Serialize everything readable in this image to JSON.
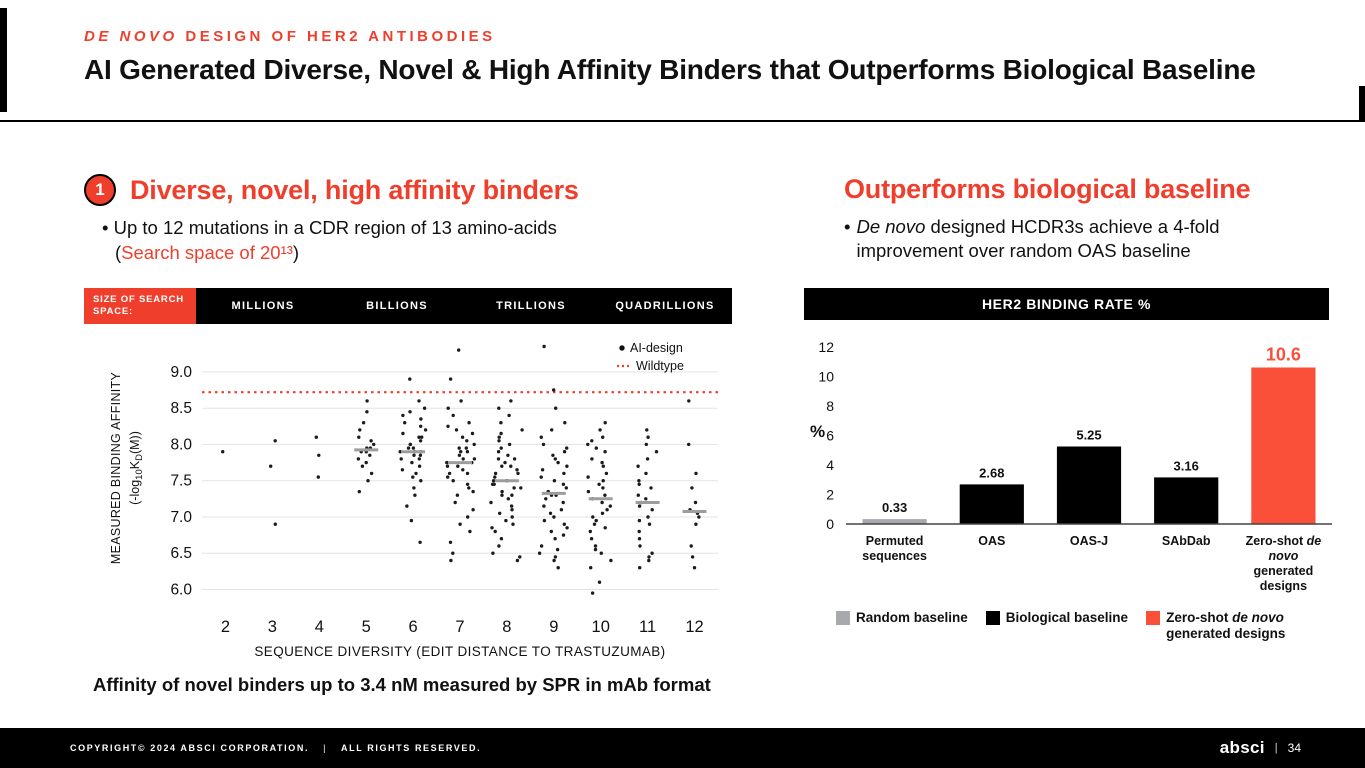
{
  "colors": {
    "accent": "#EF3F2C",
    "bar_red": "#FA4F38",
    "gray_bar": "#A7A9AC",
    "median_gray": "#9D9D9D",
    "black": "#000000"
  },
  "italic_phrases": [
    "DE NOVO",
    "De novo",
    "de novo"
  ],
  "header": {
    "kicker": "DE NOVO DESIGN OF HER2 ANTIBODIES",
    "title": "AI Generated Diverse, Novel & High Affinity Binders that Outperforms Biological Baseline"
  },
  "left_panel": {
    "badge": "1",
    "heading": "Diverse, novel, high affinity binders",
    "bullet_char": "•",
    "bullet_line1": "Up to 12 mutations in a CDR region of 13 amino-acids",
    "bullet_line2_prefix": "(",
    "bullet_line2_red": "Search space of 20¹³",
    "bullet_line2_suffix": ")",
    "banner": {
      "label": "SIZE OF SEARCH SPACE:",
      "segments": [
        "MILLIONS",
        "BILLIONS",
        "TRILLIONS",
        "QUADRILLIONS"
      ]
    },
    "caption": "Affinity of novel binders up to 3.4 nM measured by SPR in mAb format"
  },
  "right_panel": {
    "heading": "Outperforms biological baseline",
    "bullet_char": "•",
    "bullet": "De novo designed HCDR3s achieve a 4-fold improvement over random OAS baseline",
    "chart_title": "HER2 BINDING RATE %",
    "legend": [
      {
        "label": "Random baseline",
        "color": "#A7A9AC"
      },
      {
        "label": "Biological baseline",
        "color": "#000000"
      },
      {
        "label": "Zero-shot de novo generated designs",
        "color": "#FA4F38"
      }
    ]
  },
  "footer": {
    "copyright": "COPYRIGHT© 2024 ABSCI CORPORATION.",
    "divider": "|",
    "rights": "ALL RIGHTS RESERVED.",
    "logo": "absci",
    "page_sep": "|",
    "page": "34"
  },
  "chart_data": [
    {
      "type": "scatter",
      "title": "",
      "xlabel": "SEQUENCE DIVERSITY (EDIT DISTANCE TO TRASTUZUMAB)",
      "ylabel_line1": "MEASURED BINDING AFFINITY",
      "ylabel_line2_parts": [
        {
          "t": "(-log"
        },
        {
          "t": "10",
          "sub": true
        },
        {
          "t": "K"
        },
        {
          "t": "D",
          "sub": true
        },
        {
          "t": "(M))"
        }
      ],
      "x_ticks": [
        2,
        3,
        4,
        5,
        6,
        7,
        8,
        9,
        10,
        11,
        12
      ],
      "y_ticks": [
        6.0,
        6.5,
        7.0,
        7.5,
        8.0,
        8.5,
        9.0
      ],
      "ylim": [
        5.8,
        9.55
      ],
      "grid": true,
      "wildtype_affinity": 8.72,
      "legend": [
        {
          "label": "AI-design",
          "marker": "black-dot"
        },
        {
          "label": "Wildtype",
          "marker": "red-dashed-line"
        }
      ],
      "groups": [
        {
          "edit_distance": 2,
          "values": [
            7.9
          ]
        },
        {
          "edit_distance": 3,
          "values": [
            8.05,
            7.7,
            6.9
          ]
        },
        {
          "edit_distance": 4,
          "values": [
            8.1,
            7.85,
            7.55
          ]
        },
        {
          "edit_distance": 5,
          "values": [
            8.6,
            8.45,
            8.3,
            8.2,
            8.1,
            8.05,
            8.0,
            7.95,
            7.95,
            7.9,
            7.9,
            7.85,
            7.8,
            7.75,
            7.7,
            7.6,
            7.5,
            7.35
          ]
        },
        {
          "edit_distance": 6,
          "values": [
            8.9,
            8.6,
            8.5,
            8.45,
            8.4,
            8.35,
            8.3,
            8.25,
            8.2,
            8.15,
            8.1,
            8.1,
            8.05,
            8.0,
            8.0,
            7.95,
            7.95,
            7.9,
            7.9,
            7.9,
            7.85,
            7.85,
            7.8,
            7.8,
            7.75,
            7.7,
            7.65,
            7.6,
            7.55,
            7.5,
            7.4,
            7.3,
            7.15,
            6.95,
            6.65
          ]
        },
        {
          "edit_distance": 7,
          "values": [
            9.3,
            8.9,
            8.6,
            8.5,
            8.4,
            8.3,
            8.25,
            8.2,
            8.15,
            8.1,
            8.05,
            8.0,
            7.95,
            7.95,
            7.9,
            7.9,
            7.85,
            7.8,
            7.8,
            7.75,
            7.75,
            7.7,
            7.7,
            7.65,
            7.6,
            7.6,
            7.55,
            7.5,
            7.45,
            7.4,
            7.35,
            7.3,
            7.2,
            7.1,
            7.0,
            6.9,
            6.8,
            6.65,
            6.5,
            6.4
          ]
        },
        {
          "edit_distance": 8,
          "values": [
            8.6,
            8.5,
            8.4,
            8.3,
            8.2,
            8.15,
            8.1,
            8.05,
            8.0,
            7.95,
            7.9,
            7.85,
            7.8,
            7.8,
            7.75,
            7.7,
            7.7,
            7.65,
            7.6,
            7.6,
            7.55,
            7.5,
            7.5,
            7.45,
            7.45,
            7.4,
            7.4,
            7.35,
            7.3,
            7.3,
            7.25,
            7.2,
            7.15,
            7.1,
            7.05,
            7.0,
            6.95,
            6.9,
            6.85,
            6.8,
            6.7,
            6.6,
            6.5,
            6.45,
            6.4
          ]
        },
        {
          "edit_distance": 9,
          "values": [
            9.35,
            8.75,
            8.5,
            8.3,
            8.2,
            8.1,
            8.0,
            7.95,
            7.9,
            7.85,
            7.8,
            7.75,
            7.7,
            7.65,
            7.6,
            7.55,
            7.5,
            7.45,
            7.4,
            7.35,
            7.3,
            7.3,
            7.25,
            7.2,
            7.15,
            7.1,
            7.05,
            7.0,
            6.95,
            6.9,
            6.85,
            6.8,
            6.75,
            6.7,
            6.6,
            6.55,
            6.5,
            6.45,
            6.4,
            6.3
          ]
        },
        {
          "edit_distance": 10,
          "values": [
            8.3,
            8.2,
            8.1,
            8.05,
            8.0,
            7.95,
            7.9,
            7.8,
            7.75,
            7.7,
            7.6,
            7.55,
            7.5,
            7.45,
            7.4,
            7.35,
            7.3,
            7.25,
            7.2,
            7.15,
            7.1,
            7.05,
            7.0,
            6.95,
            6.9,
            6.85,
            6.8,
            6.7,
            6.6,
            6.55,
            6.5,
            6.4,
            6.3,
            6.1,
            5.95
          ]
        },
        {
          "edit_distance": 11,
          "values": [
            8.2,
            8.1,
            8.0,
            7.9,
            7.8,
            7.7,
            7.6,
            7.5,
            7.45,
            7.4,
            7.3,
            7.25,
            7.2,
            7.15,
            7.1,
            7.0,
            6.95,
            6.9,
            6.8,
            6.7,
            6.6,
            6.5,
            6.45,
            6.4,
            6.3
          ]
        },
        {
          "edit_distance": 12,
          "values": [
            8.6,
            8.0,
            7.6,
            7.4,
            7.2,
            7.1,
            7.05,
            7.0,
            6.9,
            6.6,
            6.45,
            6.3
          ]
        }
      ]
    },
    {
      "type": "bar",
      "title": "HER2 BINDING RATE %",
      "ylabel": "%",
      "ylim": [
        0,
        12.6
      ],
      "y_ticks": [
        0,
        2,
        4,
        6,
        8,
        10,
        12
      ],
      "grid": false,
      "categories": [
        "Permuted sequences",
        "OAS",
        "OAS-J",
        "SAbDab",
        "Zero-shot de novo generated designs"
      ],
      "values": [
        0.33,
        2.68,
        5.25,
        3.16,
        10.6
      ],
      "bar_colors": [
        "#A7A9AC",
        "#000000",
        "#000000",
        "#000000",
        "#FA4F38"
      ],
      "value_label_colors": [
        "#111111",
        "#111111",
        "#111111",
        "#111111",
        "#FA4F38"
      ]
    }
  ]
}
